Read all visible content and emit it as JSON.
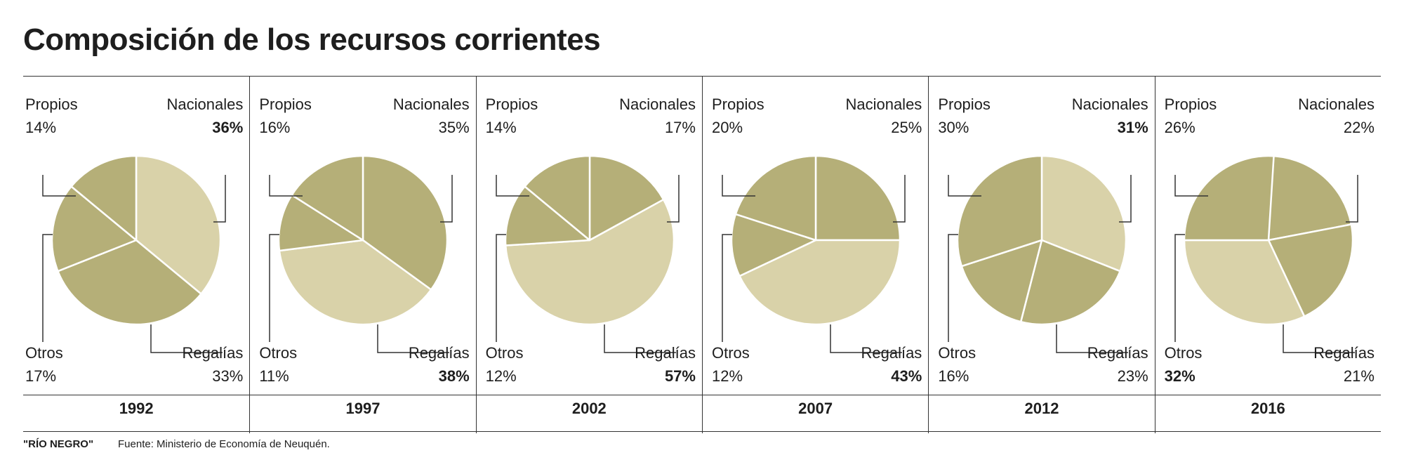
{
  "title": "Composición de los recursos corrientes",
  "footer": {
    "brand": "\"RÍO NEGRO\"",
    "source": "Fuente: Ministerio de Economía de Neuquén."
  },
  "colors": {
    "dark": "#b5af78",
    "light": "#d9d2a9",
    "text": "#1e1e1e",
    "rule": "#333333"
  },
  "chart_data": {
    "type": "pie",
    "slice_order": [
      "Nacionales",
      "Regalías",
      "Otros",
      "Propios"
    ],
    "charts": [
      {
        "year": "1992",
        "labels": {
          "Propios": "Propios",
          "Nacionales": "Nacionales",
          "Otros": "Otros",
          "Regalias": "Regalías"
        },
        "values": {
          "Propios": "14%",
          "Nacionales": "36%",
          "Otros": "17%",
          "Regalias": "33%"
        },
        "shares": {
          "Nacionales": 36,
          "Regalías": 33,
          "Otros": 17,
          "Propios": 14
        },
        "bold": [
          "Nacionales"
        ],
        "light": [
          "Nacionales"
        ]
      },
      {
        "year": "1997",
        "labels": {
          "Propios": "Propios",
          "Nacionales": "Nacionales",
          "Otros": "Otros",
          "Regalias": "Regalías"
        },
        "values": {
          "Propios": "16%",
          "Nacionales": "35%",
          "Otros": "11%",
          "Regalias": "38%"
        },
        "shares": {
          "Nacionales": 35,
          "Regalías": 38,
          "Otros": 11,
          "Propios": 16
        },
        "bold": [
          "Regalías"
        ],
        "light": [
          "Regalías"
        ]
      },
      {
        "year": "2002",
        "labels": {
          "Propios": "Propios",
          "Nacionales": "Nacionales",
          "Otros": "Otros",
          "Regalias": "Regalías"
        },
        "values": {
          "Propios": "14%",
          "Nacionales": "17%",
          "Otros": "12%",
          "Regalias": "57%"
        },
        "shares": {
          "Nacionales": 17,
          "Regalías": 57,
          "Otros": 12,
          "Propios": 14
        },
        "bold": [
          "Regalías"
        ],
        "light": [
          "Regalías"
        ]
      },
      {
        "year": "2007",
        "labels": {
          "Propios": "Propios",
          "Nacionales": "Nacionales",
          "Otros": "Otros",
          "Regalias": "Regalías"
        },
        "values": {
          "Propios": "20%",
          "Nacionales": "25%",
          "Otros": "12%",
          "Regalias": "43%"
        },
        "shares": {
          "Nacionales": 25,
          "Regalías": 43,
          "Otros": 12,
          "Propios": 20
        },
        "bold": [
          "Regalías"
        ],
        "light": [
          "Regalías"
        ]
      },
      {
        "year": "2012",
        "labels": {
          "Propios": "Propios",
          "Nacionales": "Nacionales",
          "Otros": "Otros",
          "Regalias": "Regalías"
        },
        "values": {
          "Propios": "30%",
          "Nacionales": "31%",
          "Otros": "16%",
          "Regalias": "23%"
        },
        "shares": {
          "Nacionales": 31,
          "Regalías": 23,
          "Otros": 16,
          "Propios": 30
        },
        "bold": [
          "Nacionales"
        ],
        "light": [
          "Nacionales"
        ]
      },
      {
        "year": "2016",
        "labels": {
          "Propios": "Propios",
          "Nacionales": "Nacionales",
          "Otros": "Otros",
          "Regalias": "Regalías"
        },
        "values": {
          "Propios": "26%",
          "Nacionales": "22%",
          "Otros": "32%",
          "Regalias": "21%"
        },
        "shares": {
          "Nacionales": 22,
          "Regalías": 21,
          "Otros": 32,
          "Propios": 26
        },
        "bold": [
          "Otros"
        ],
        "light": [
          "Otros"
        ]
      }
    ]
  }
}
